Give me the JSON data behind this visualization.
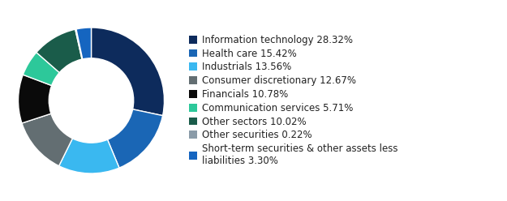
{
  "labels": [
    "Information technology 28.32%",
    "Health care 15.42%",
    "Industrials 13.56%",
    "Consumer discretionary 12.67%",
    "Financials 10.78%",
    "Communication services 5.71%",
    "Other sectors 10.02%",
    "Other securities 0.22%",
    "Short-term securities & other assets less\nliabilities 3.30%"
  ],
  "values": [
    28.32,
    15.42,
    13.56,
    12.67,
    10.78,
    5.71,
    10.02,
    0.22,
    3.3
  ],
  "colors": [
    "#0d2b5c",
    "#1a66b5",
    "#3ab8f0",
    "#636e72",
    "#0a0a0a",
    "#2dc89a",
    "#1a5c4a",
    "#8a9ba8",
    "#1565c0"
  ],
  "background_color": "#ffffff",
  "legend_fontsize": 8.5,
  "fig_width": 6.25,
  "fig_height": 2.48
}
